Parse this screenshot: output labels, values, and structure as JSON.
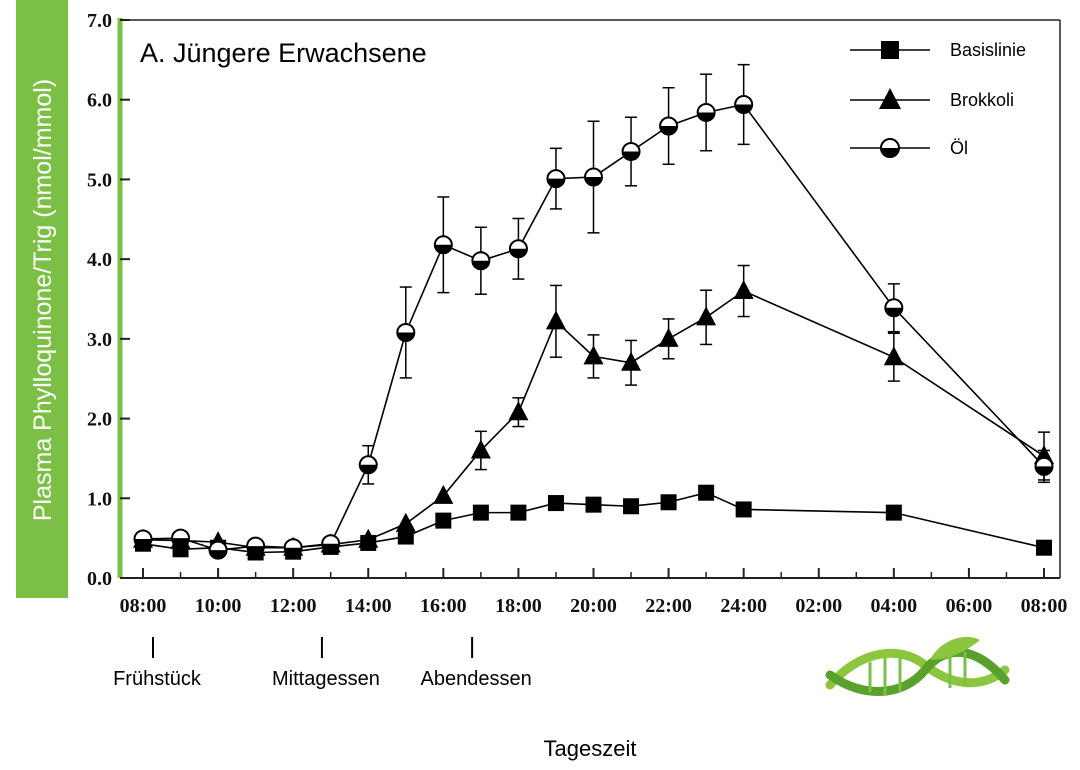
{
  "chart_data": {
    "type": "line",
    "title": "A. Jüngere Erwachsene",
    "xlabel": "Tageszeit",
    "ylabel": "Plasma Phylloquinone/Trig (nmol/mmol)",
    "ylim": [
      0,
      7
    ],
    "y_ticks": [
      "0.0",
      "1.0",
      "2.0",
      "3.0",
      "4.0",
      "5.0",
      "6.0",
      "7.0"
    ],
    "x_ticks": [
      "08:00",
      "10:00",
      "12:00",
      "14:00",
      "16:00",
      "18:00",
      "20:00",
      "22:00",
      "24:00",
      "02:00",
      "04:00",
      "06:00",
      "08:00"
    ],
    "x_hours_range": [
      8,
      32
    ],
    "legend_position": "top-right",
    "series": [
      {
        "name": "Basislinie",
        "marker": "square",
        "x": [
          8,
          9,
          10,
          11,
          12,
          13,
          14,
          15,
          16,
          17,
          18,
          19,
          20,
          21,
          22,
          23,
          24,
          28,
          32
        ],
        "values": [
          0.43,
          0.36,
          0.38,
          0.32,
          0.33,
          0.39,
          0.44,
          0.52,
          0.72,
          0.82,
          0.82,
          0.94,
          0.92,
          0.9,
          0.95,
          1.07,
          0.86,
          0.82,
          0.38
        ],
        "error": [
          0,
          0,
          0,
          0,
          0,
          0,
          0,
          0,
          0,
          0,
          0,
          0,
          0,
          0,
          0,
          0,
          0,
          0,
          0
        ]
      },
      {
        "name": "Brokkoli",
        "marker": "triangle",
        "x": [
          8,
          9,
          10,
          11,
          12,
          13,
          14,
          15,
          16,
          17,
          18,
          19,
          20,
          21,
          22,
          23,
          24,
          28,
          32
        ],
        "values": [
          0.48,
          0.47,
          0.45,
          0.38,
          0.38,
          0.42,
          0.48,
          0.68,
          1.03,
          1.6,
          2.08,
          3.22,
          2.78,
          2.7,
          3.0,
          3.27,
          3.6,
          2.77,
          1.53
        ],
        "error": [
          0,
          0,
          0,
          0,
          0,
          0,
          0,
          0,
          0,
          0.24,
          0.18,
          0.45,
          0.27,
          0.28,
          0.25,
          0.34,
          0.32,
          0.3,
          0.3
        ]
      },
      {
        "name": "Öl",
        "marker": "circle",
        "x": [
          8,
          9,
          10,
          11,
          12,
          13,
          14,
          15,
          16,
          17,
          18,
          19,
          20,
          21,
          22,
          23,
          24,
          28,
          32
        ],
        "values": [
          0.49,
          0.5,
          0.35,
          0.4,
          0.38,
          0.43,
          1.42,
          3.08,
          4.18,
          3.98,
          4.13,
          5.01,
          5.03,
          5.35,
          5.67,
          5.84,
          5.94,
          3.39,
          1.4
        ],
        "error": [
          0,
          0,
          0,
          0,
          0,
          0,
          0.24,
          0.57,
          0.6,
          0.42,
          0.38,
          0.38,
          0.7,
          0.43,
          0.48,
          0.48,
          0.5,
          0.3,
          0.2
        ]
      }
    ],
    "annotations": [
      {
        "label": "Frühstück",
        "x": 8
      },
      {
        "label": "Mittagessen",
        "x": 12.5
      },
      {
        "label": "Abendessen",
        "x": 16.5
      }
    ],
    "colors": {
      "accent": "#7bbf44",
      "ink": "#000000"
    }
  },
  "logo": {
    "name": "dna-leaf-logo"
  }
}
